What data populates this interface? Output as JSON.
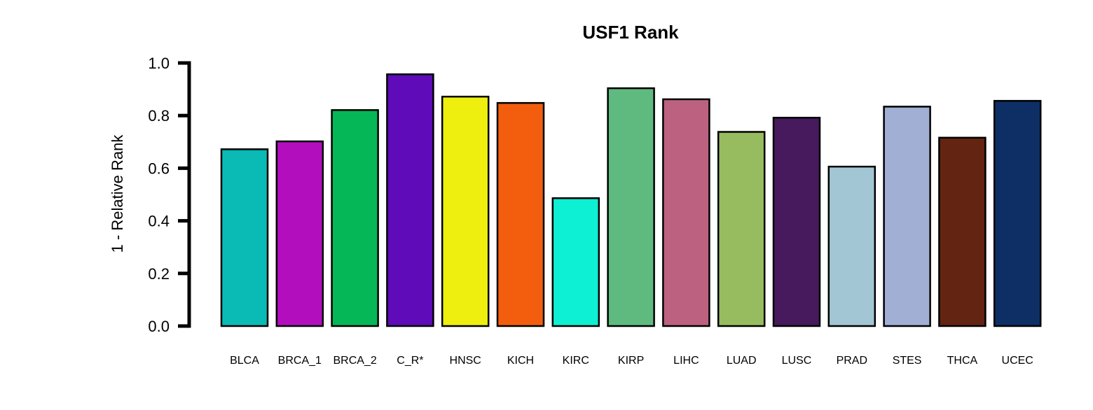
{
  "chart_data": {
    "type": "bar",
    "title": "USF1 Rank",
    "xlabel": "",
    "ylabel": "1 - Relative Rank",
    "ylim": [
      0,
      1.0
    ],
    "yticks": [
      "0.0",
      "0.2",
      "0.4",
      "0.6",
      "0.8",
      "1.0"
    ],
    "ytick_values": [
      0,
      0.2,
      0.4,
      0.6,
      0.8,
      1.0
    ],
    "grid": false,
    "legend": "none",
    "categories": [
      "BLCA",
      "BRCA_1",
      "BRCA_2",
      "C_R*",
      "HNSC",
      "KICH",
      "KIRC",
      "KIRP",
      "LIHC",
      "LUAD",
      "LUSC",
      "PRAD",
      "STES",
      "THCA",
      "UCEC"
    ],
    "values": [
      0.672,
      0.702,
      0.821,
      0.957,
      0.872,
      0.848,
      0.486,
      0.904,
      0.862,
      0.738,
      0.792,
      0.606,
      0.834,
      0.716,
      0.856
    ],
    "colors": [
      "#0ABAB5",
      "#B30EBE",
      "#06B757",
      "#5F0BB9",
      "#EEEF0F",
      "#F25E0E",
      "#0EF0D3",
      "#5FBA7F",
      "#BC6280",
      "#97BC60",
      "#461A5D",
      "#A2C6D3",
      "#A0AFD3",
      "#632412",
      "#0D2F66"
    ]
  }
}
